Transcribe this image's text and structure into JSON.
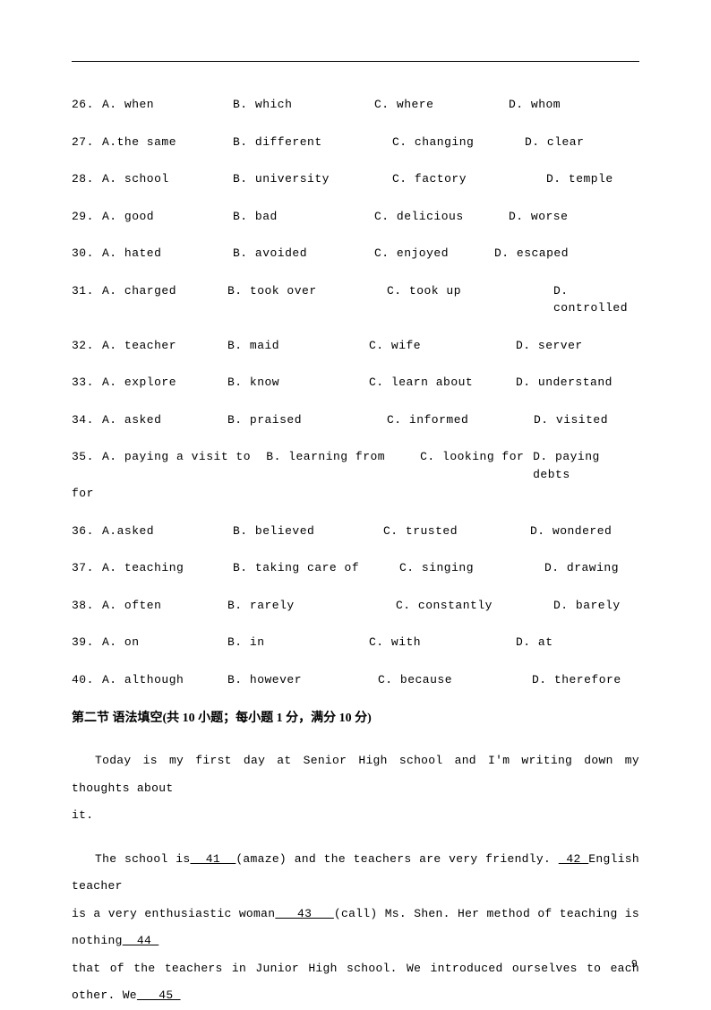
{
  "questions": [
    {
      "num": "26.",
      "a": "A. when",
      "b": "B. which",
      "c": "C. where",
      "d": "D. whom",
      "aW": 146,
      "bW": 158,
      "cW": 150
    },
    {
      "num": "27.",
      "a": "A.the same",
      "b": "B. different",
      "c": "C. changing",
      "d": "D. clear",
      "aW": 146,
      "bW": 178,
      "cW": 148
    },
    {
      "num": "28.",
      "a": "A. school",
      "b": "B. university",
      "c": "C. factory",
      "d": "D. temple",
      "aW": 146,
      "bW": 178,
      "cW": 172
    },
    {
      "num": "29.",
      "a": "A. good",
      "b": "B. bad",
      "c": "C. delicious",
      "d": "D. worse",
      "aW": 146,
      "bW": 158,
      "cW": 150
    },
    {
      "num": "30.",
      "a": "A. hated",
      "b": "B. avoided",
      "c": "C. enjoyed",
      "d": "D. escaped",
      "aW": 146,
      "bW": 158,
      "cW": 134
    },
    {
      "num": "31. ",
      "a": "A. charged",
      "b": "B. took over",
      "c": "C. took up",
      "d": "D. controlled",
      "aW": 140,
      "bW": 178,
      "cW": 186
    },
    {
      "num": "32. ",
      "a": "A. teacher",
      "b": "B. maid",
      "c": "C. wife",
      "d": "D. server",
      "aW": 140,
      "bW": 158,
      "cW": 164
    },
    {
      "num": "33. ",
      "a": "A. explore",
      "b": "B. know",
      "c": "C. learn about",
      "d": "D. understand",
      "aW": 140,
      "bW": 158,
      "cW": 164
    },
    {
      "num": "34. ",
      "a": "A. asked",
      "b": "B. praised",
      "c": "C. informed",
      "d": "D. visited",
      "aW": 140,
      "bW": 178,
      "cW": 164
    }
  ],
  "q35": {
    "num": "35.",
    "a": "A. paying a visit to",
    "b": "B. learning from",
    "c": "C. looking for",
    "d": "D. paying debts",
    "cont": "for"
  },
  "questions2": [
    {
      "num": "36.",
      "a": "A.asked",
      "b": "B. believed",
      "c": "C. trusted",
      "d": "D. wondered",
      "aW": 146,
      "bW": 168,
      "cW": 164
    },
    {
      "num": "37.",
      "a": "A. teaching",
      "b": "B. taking care of",
      "c": "C. singing",
      "d": "D. drawing",
      "aW": 146,
      "bW": 186,
      "cW": 162
    },
    {
      "num": "38. ",
      "a": "A. often",
      "b": "B. rarely",
      "c": "C. constantly",
      "d": "D. barely",
      "aW": 140,
      "bW": 188,
      "cW": 176
    },
    {
      "num": "39. ",
      "a": "A. on",
      "b": "B. in",
      "c": "C. with",
      "d": "D. at",
      "aW": 140,
      "bW": 158,
      "cW": 164
    },
    {
      "num": "40. ",
      "a": "A. although",
      "b": "B. however",
      "c": "C. because",
      "d": "D. therefore",
      "aW": 140,
      "bW": 168,
      "cW": 172
    }
  ],
  "section_title": "第二节 语法填空(共 10 小题；每小题 1 分，满分 10 分)",
  "para1_a": "Today is my first day at Senior High school and I'm writing down my thoughts about",
  "para1_b": "it.",
  "para2_a": "The school is",
  "para2_blank41": "  41  ",
  "para2_b": "(amaze) and the teachers are very friendly. ",
  "para2_blank42": " 42 ",
  "para2_c": "English teacher",
  "para2_d": "is a very enthusiastic woman",
  "para2_blank43": "   43   ",
  "para2_e": "(call) Ms. Shen. Her method of teaching is nothing",
  "para2_blank44": "  44 ",
  "para2_f": "that of the teachers in Junior High school. We introduced ourselves to each other. We",
  "para2_blank45": "   45 ",
  "page_number": "9"
}
